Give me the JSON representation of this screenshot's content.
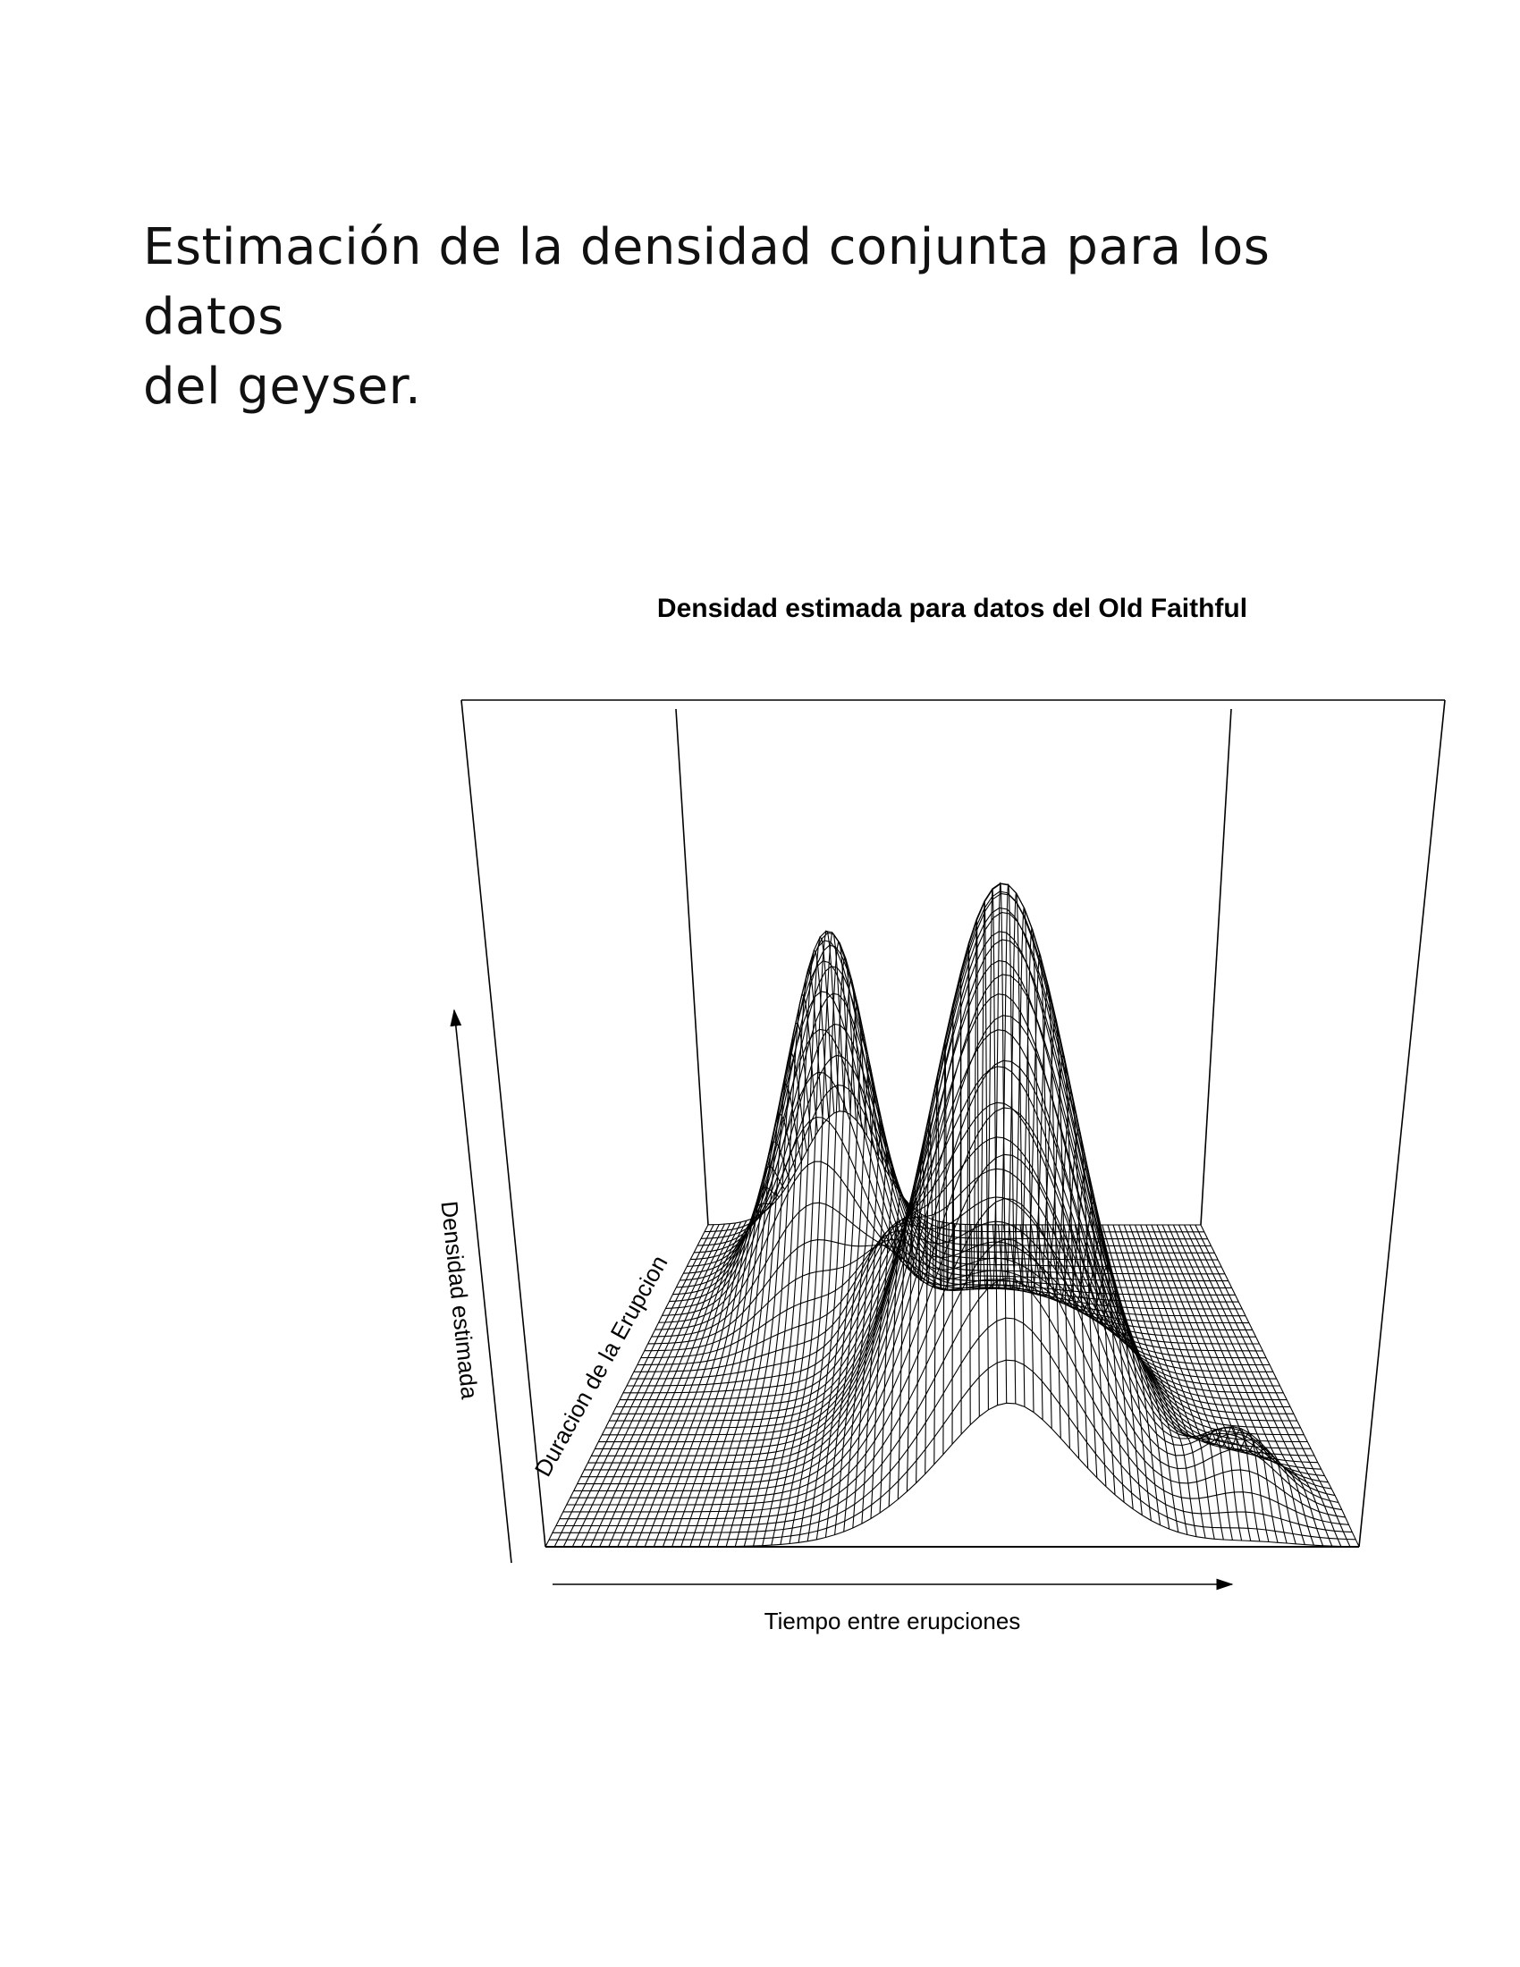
{
  "slide": {
    "title_line1": "Estimación de la densidad conjunta para los datos",
    "title_line2": "del geyser."
  },
  "chart_data": {
    "type": "surface",
    "title": "Densidad estimada para datos del Old Faithful",
    "xlabel": "Tiempo entre erupciones",
    "ylabel": "Duracion de la Erupcion",
    "zlabel": "Densidad estimada",
    "grid": true,
    "peaks": [
      {
        "name": "peak-short-eruptions",
        "x_frac": 0.27,
        "y_frac": 0.82,
        "height": 0.62
      },
      {
        "name": "peak-long-eruptions",
        "x_frac": 0.57,
        "y_frac": 0.3,
        "height": 1.0
      },
      {
        "name": "small-bump-center",
        "x_frac": 0.4,
        "y_frac": 0.55,
        "height": 0.16
      },
      {
        "name": "small-bump-front",
        "x_frac": 0.57,
        "y_frac": 0.04,
        "height": 0.06
      },
      {
        "name": "small-bump-right",
        "x_frac": 0.87,
        "y_frac": 0.14,
        "height": 0.12
      }
    ]
  }
}
